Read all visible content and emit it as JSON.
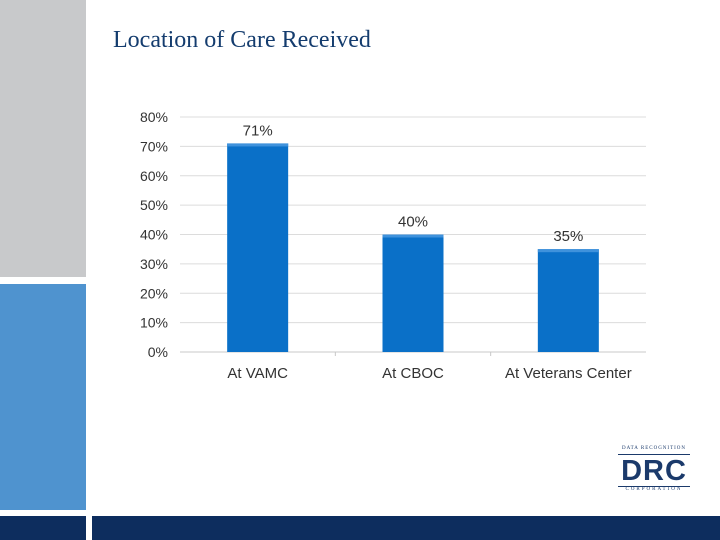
{
  "slide": {
    "title": "Location of Care Received"
  },
  "logo": {
    "top_text": "DATA RECOGNITION",
    "main_text": "DRC",
    "bottom_text": "CORPORATION"
  },
  "colors": {
    "bar": "#0a70c8",
    "title": "#143c6e",
    "accent_gray": "#c8c9cb",
    "accent_blue": "#4f93cf",
    "footer": "#0d2d5e"
  },
  "chart_data": {
    "type": "bar",
    "categories": [
      "At VAMC",
      "At CBOC",
      "At Veterans Center"
    ],
    "values": [
      71,
      40,
      35
    ],
    "data_labels": [
      "71%",
      "40%",
      "35%"
    ],
    "y_ticks": [
      "0%",
      "10%",
      "20%",
      "30%",
      "40%",
      "50%",
      "60%",
      "70%",
      "80%"
    ],
    "ylim": [
      0,
      80
    ],
    "grid": true,
    "legend": "none"
  }
}
